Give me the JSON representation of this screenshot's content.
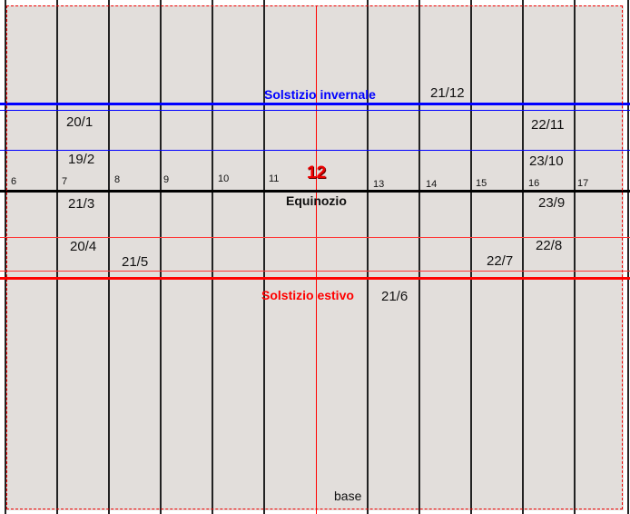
{
  "colors": {
    "winter": "#0000ff",
    "summer": "#ff0000",
    "equinox": "#000000",
    "noon": "#ff0000",
    "background": "#e2dedb"
  },
  "labels": {
    "winter_solstice": "Solstizio invernale",
    "summer_solstice": "Solstizio estivo",
    "equinox": "Equinozio",
    "noon": "12",
    "base": "base"
  },
  "hours": [
    "6",
    "7",
    "8",
    "9",
    "10",
    "11",
    "13",
    "14",
    "15",
    "16",
    "17"
  ],
  "dates": {
    "d2112": "21/12",
    "d201": "20/1",
    "d2211": "22/11",
    "d192": "19/2",
    "d2310": "23/10",
    "d213": "21/3",
    "d239": "23/9",
    "d204": "20/4",
    "d228": "22/8",
    "d215": "21/5",
    "d227": "22/7",
    "d216": "21/6"
  }
}
